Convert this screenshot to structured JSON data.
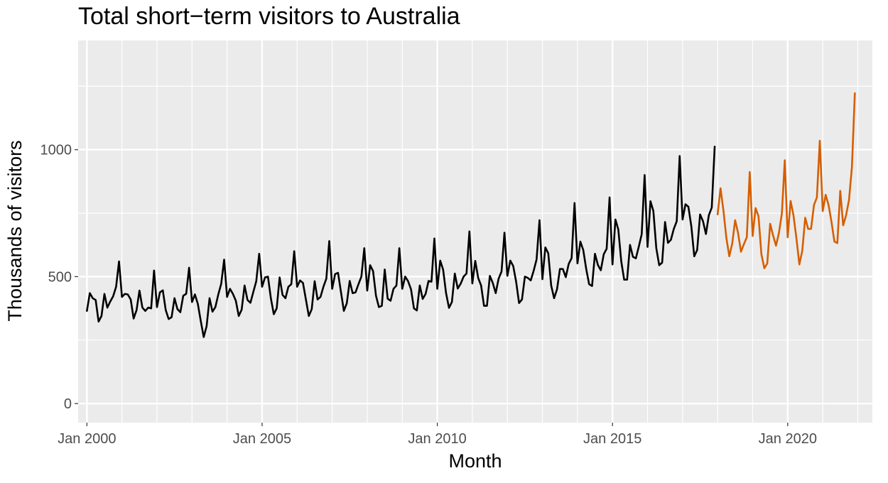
{
  "chart_data": {
    "type": "line",
    "title": "Total short−term visitors to Australia",
    "xlabel": "Month",
    "ylabel": "Thousands of visitors",
    "x_start": "2000-01",
    "xlim": [
      "1999-10",
      "2022-06"
    ],
    "ylim": [
      -75,
      1430
    ],
    "x_ticks": [
      {
        "label": "Jan 2000",
        "date": "2000-01"
      },
      {
        "label": "Jan 2005",
        "date": "2005-01"
      },
      {
        "label": "Jan 2010",
        "date": "2010-01"
      },
      {
        "label": "Jan 2015",
        "date": "2015-01"
      },
      {
        "label": "Jan 2020",
        "date": "2020-01"
      }
    ],
    "y_ticks": [
      {
        "label": "0",
        "value": 0
      },
      {
        "label": "500",
        "value": 500
      },
      {
        "label": "1000",
        "value": 1000
      }
    ],
    "grid": true,
    "background": "#ebebeb",
    "series": [
      {
        "color": "#000000",
        "start": "2000-01",
        "values": [
          365,
          435,
          415,
          408,
          323,
          345,
          432,
          378,
          402,
          423,
          460,
          560,
          420,
          432,
          430,
          410,
          335,
          368,
          445,
          378,
          365,
          378,
          375,
          524,
          380,
          438,
          446,
          368,
          333,
          340,
          415,
          372,
          360,
          425,
          432,
          535,
          400,
          430,
          392,
          325,
          262,
          305,
          415,
          362,
          380,
          430,
          472,
          567,
          420,
          452,
          432,
          405,
          345,
          370,
          465,
          408,
          397,
          440,
          482,
          590,
          460,
          497,
          500,
          415,
          352,
          375,
          497,
          428,
          415,
          460,
          470,
          600,
          460,
          485,
          475,
          410,
          345,
          372,
          482,
          410,
          420,
          460,
          492,
          640,
          452,
          510,
          515,
          440,
          365,
          395,
          483,
          435,
          438,
          470,
          500,
          612,
          445,
          545,
          522,
          425,
          380,
          385,
          528,
          413,
          405,
          452,
          465,
          612,
          452,
          500,
          482,
          450,
          375,
          367,
          465,
          412,
          432,
          483,
          480,
          650,
          452,
          563,
          527,
          435,
          377,
          400,
          512,
          453,
          472,
          500,
          512,
          678,
          473,
          562,
          495,
          465,
          385,
          385,
          503,
          475,
          435,
          492,
          520,
          673,
          503,
          563,
          542,
          480,
          396,
          410,
          500,
          495,
          485,
          523,
          568,
          722,
          490,
          615,
          592,
          465,
          415,
          450,
          530,
          530,
          498,
          550,
          573,
          790,
          552,
          638,
          604,
          530,
          470,
          463,
          590,
          546,
          525,
          588,
          610,
          812,
          548,
          725,
          685,
          560,
          488,
          488,
          625,
          578,
          572,
          618,
          667,
          900,
          617,
          797,
          758,
          612,
          545,
          555,
          715,
          633,
          645,
          688,
          718,
          975,
          725,
          785,
          775,
          698,
          580,
          605,
          745,
          718,
          668,
          742,
          772,
          1012
        ]
      },
      {
        "color": "#d55e00",
        "start": "2018-01",
        "values": [
          745,
          848,
          760,
          652,
          580,
          630,
          722,
          672,
          598,
          628,
          655,
          912,
          660,
          770,
          738,
          588,
          533,
          552,
          708,
          662,
          622,
          672,
          748,
          958,
          655,
          798,
          740,
          650,
          548,
          602,
          732,
          688,
          688,
          782,
          812,
          1035,
          758,
          822,
          782,
          715,
          638,
          632,
          838,
          702,
          742,
          802,
          932,
          1222
        ]
      }
    ]
  }
}
